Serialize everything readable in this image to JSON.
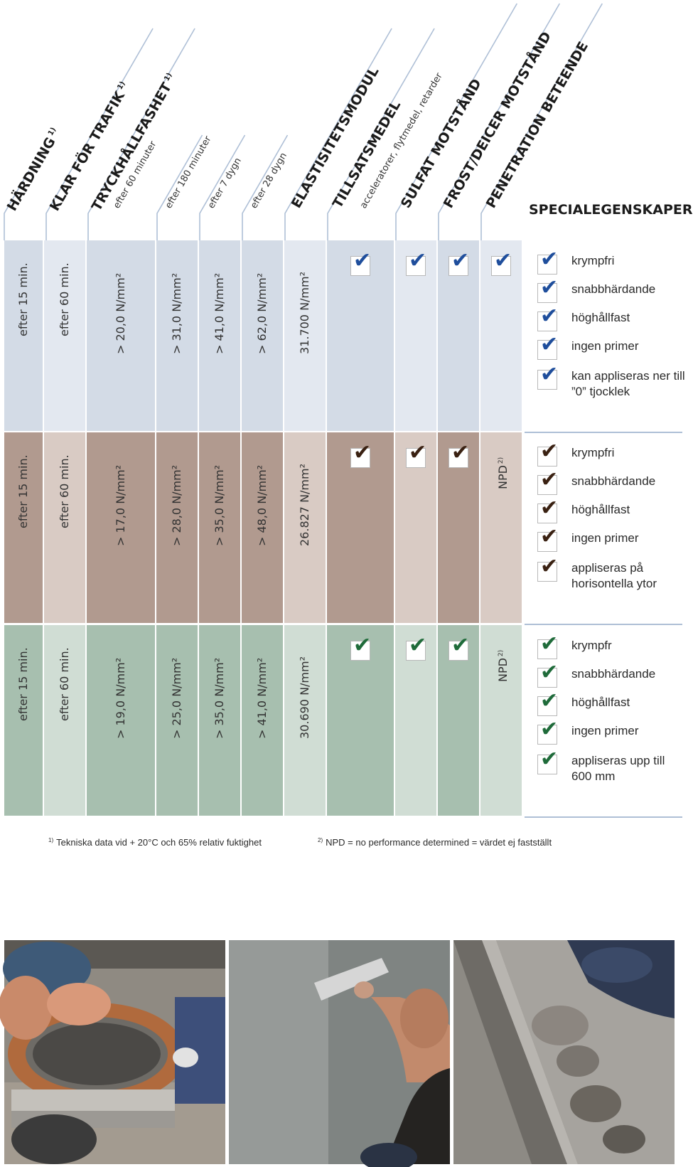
{
  "header": {
    "columns": [
      {
        "title": "HÄRDNING",
        "sup": "1)"
      },
      {
        "title": "KLAR FÖR TRAFIK",
        "sup": "1)"
      },
      {
        "title": "TRYCKHÅLLFASHET",
        "sup": "1)",
        "sub": "efter 60 minuter"
      },
      {
        "sub": "efter 180 minuter"
      },
      {
        "sub": "efter 7 dygn"
      },
      {
        "sub": "efter 28 dygn"
      },
      {
        "title": "ELASTISITETSMODUL"
      },
      {
        "title": "TILLSATSMEDEL",
        "sub": "acceleratorer, flytmedel, retarder"
      },
      {
        "title": "SULFAT MOTSTÅND"
      },
      {
        "title": "FROST/DEICER MOTSTÅND"
      },
      {
        "title": "PENETRATION BETEENDE"
      }
    ],
    "special_title": "SPECIALEGENSKAPER"
  },
  "products": [
    {
      "values": [
        "efter 15 min.",
        "efter 60 min.",
        "> 20,0 N/mm²",
        "> 31,0 N/mm²",
        "> 41,0 N/mm²",
        "> 62,0 N/mm²",
        "31.700 N/mm²"
      ],
      "checks": [
        true,
        true,
        true,
        true
      ],
      "npd": {
        "text": "",
        "sup": ""
      },
      "properties": [
        "krympfri",
        "snabbhärdande",
        "höghållfast",
        "ingen primer",
        "kan appliseras ner till ”0” tjocklek"
      ]
    },
    {
      "values": [
        "efter 15 min.",
        "efter 60 min.",
        "> 17,0 N/mm²",
        "> 28,0 N/mm²",
        "> 35,0 N/mm²",
        "> 48,0 N/mm²",
        "26.827 N/mm²"
      ],
      "checks": [
        true,
        true,
        true,
        false
      ],
      "npd": {
        "text": "NPD",
        "sup": "2)"
      },
      "properties": [
        "krympfri",
        "snabbhärdande",
        "höghållfast",
        "ingen primer",
        "appliseras på horisontella ytor"
      ]
    },
    {
      "values": [
        "efter 15 min.",
        "efter 60 min.",
        "> 19,0 N/mm²",
        "> 25,0 N/mm²",
        "> 35,0 N/mm²",
        "> 41,0 N/mm²",
        "30.690 N/mm²"
      ],
      "checks": [
        true,
        true,
        true,
        false
      ],
      "npd": {
        "text": "NPD",
        "sup": "2)"
      },
      "properties": [
        "krympfr",
        "snabbhärdande",
        "höghållfast",
        "ingen primer",
        "appliseras upp till 600 mm"
      ]
    }
  ],
  "footnotes": [
    {
      "sup": "1)",
      "text": "Tekniska data vid + 20°C och 65% relativ fuktighet"
    },
    {
      "sup": "2)",
      "text": "NPD = no performance determined = värdet ej fastställt"
    }
  ],
  "colors": {
    "blue": {
      "dark": "#d3dbe6",
      "light": "#e3e8f0",
      "tick": "#1f4e9c"
    },
    "brown": {
      "dark": "#b19a8f",
      "light": "#d9cbc4",
      "tick": "#3a2112"
    },
    "green": {
      "dark": "#a7bfaf",
      "light": "#d0ddd4",
      "tick": "#1f6b3a"
    }
  },
  "photos": [
    "manhole-ring-repair-photo",
    "wall-plastering-photo",
    "floor-joint-repair-photo"
  ]
}
